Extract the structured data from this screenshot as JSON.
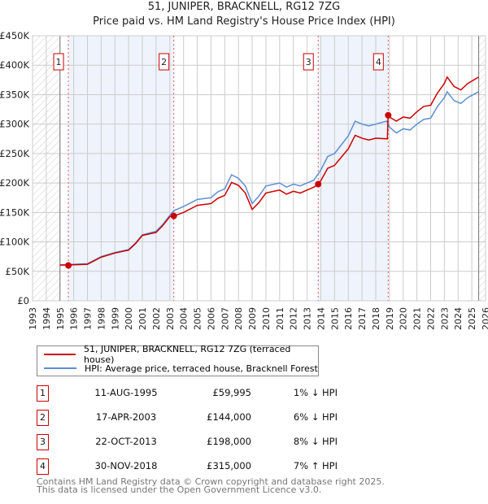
{
  "chart_data": {
    "type": "line",
    "title": "51, JUNIPER, BRACKNELL, RG12 7ZG",
    "subtitle": "Price paid vs. HM Land Registry's House Price Index (HPI)",
    "xlim": [
      1993,
      2026
    ],
    "ylim": [
      0,
      450000
    ],
    "x_ticks": [
      "1993",
      "1994",
      "1995",
      "1996",
      "1997",
      "1998",
      "1999",
      "2000",
      "2001",
      "2002",
      "2003",
      "2004",
      "2005",
      "2006",
      "2007",
      "2008",
      "2009",
      "2010",
      "2011",
      "2012",
      "2013",
      "2014",
      "2015",
      "2016",
      "2017",
      "2018",
      "2019",
      "2020",
      "2021",
      "2022",
      "2023",
      "2024",
      "2025",
      "2026"
    ],
    "y_ticks": [
      {
        "v": 0,
        "label": "£0"
      },
      {
        "v": 50000,
        "label": "£50K"
      },
      {
        "v": 100000,
        "label": "£100K"
      },
      {
        "v": 150000,
        "label": "£150K"
      },
      {
        "v": 200000,
        "label": "£200K"
      },
      {
        "v": 250000,
        "label": "£250K"
      },
      {
        "v": 300000,
        "label": "£300K"
      },
      {
        "v": 350000,
        "label": "£350K"
      },
      {
        "v": 400000,
        "label": "£400K"
      },
      {
        "v": 450000,
        "label": "£450K"
      }
    ],
    "grid": true,
    "data_range": [
      1995,
      2025.5
    ],
    "shaded_periods": [
      [
        1995.6,
        2003.3
      ],
      [
        2013.8,
        2018.9
      ]
    ],
    "colors": {
      "property": "#cc0000",
      "hpi": "#5b8fd4",
      "shade": "#eef3fc",
      "marker": "#cc0000"
    },
    "series": [
      {
        "name": "51, JUNIPER, BRACKNELL, RG12 7ZG (terraced house)",
        "x": [
          1995,
          1996,
          1997,
          1998,
          1999,
          2000,
          2000.5,
          2001,
          2002,
          2002.5,
          2003,
          2003.3,
          2004,
          2005,
          2006,
          2006.5,
          2007,
          2007.5,
          2008,
          2008.5,
          2009,
          2009.5,
          2010,
          2011,
          2011.5,
          2012,
          2012.5,
          2013,
          2013.5,
          2013.8,
          2014,
          2014.5,
          2015,
          2015.5,
          2016,
          2016.5,
          2017,
          2017.5,
          2018,
          2018.85,
          2018.9,
          2019,
          2019.5,
          2020,
          2020.5,
          2021,
          2021.5,
          2022,
          2022.5,
          2023,
          2023.2,
          2023.7,
          2024.2,
          2024.7,
          2025.5
        ],
        "y": [
          60500,
          61000,
          62000,
          74000,
          81000,
          86000,
          97000,
          111000,
          116000,
          128000,
          143000,
          144000,
          150000,
          162000,
          165000,
          174000,
          179000,
          201000,
          196000,
          183000,
          155000,
          167000,
          183000,
          188000,
          181000,
          186000,
          183000,
          188000,
          193000,
          198000,
          204000,
          225000,
          230000,
          244000,
          258000,
          281000,
          276000,
          273000,
          276000,
          275000,
          315000,
          312000,
          305000,
          312000,
          310000,
          321000,
          330000,
          332000,
          353000,
          369000,
          380000,
          364000,
          358000,
          369000,
          380000
        ]
      },
      {
        "name": "HPI: Average price, terraced house, Bracknell Forest",
        "x": [
          1995,
          1996,
          1997,
          1998,
          1999,
          2000,
          2000.5,
          2001,
          2002,
          2002.5,
          2003,
          2003.3,
          2004,
          2005,
          2006,
          2006.5,
          2007,
          2007.5,
          2008,
          2008.5,
          2009,
          2009.5,
          2010,
          2011,
          2011.5,
          2012,
          2012.5,
          2013,
          2013.5,
          2014,
          2014.5,
          2015,
          2015.5,
          2016,
          2016.5,
          2017,
          2017.5,
          2018,
          2018.8,
          2019,
          2019.5,
          2020,
          2020.5,
          2021,
          2021.5,
          2022,
          2022.5,
          2023,
          2023.2,
          2023.7,
          2024.2,
          2024.7,
          2025.5
        ],
        "y": [
          61000,
          62000,
          63000,
          75000,
          82000,
          87000,
          98000,
          112000,
          118000,
          130000,
          145000,
          153000,
          160000,
          172000,
          175000,
          185000,
          190000,
          214000,
          208000,
          195000,
          165000,
          178000,
          195000,
          200000,
          193000,
          198000,
          195000,
          200000,
          205000,
          222000,
          245000,
          250000,
          265000,
          280000,
          305000,
          300000,
          297000,
          300000,
          305000,
          295000,
          285000,
          292000,
          290000,
          300000,
          308000,
          310000,
          330000,
          345000,
          355000,
          340000,
          335000,
          345000,
          355000
        ]
      }
    ],
    "sales": [
      {
        "n": "1",
        "x": 1995.61,
        "price": 59995,
        "date": "11-AUG-1995",
        "price_label": "£59,995",
        "hpi": "1% ↓ HPI"
      },
      {
        "n": "2",
        "x": 2003.29,
        "price": 144000,
        "date": "17-APR-2003",
        "price_label": "£144,000",
        "hpi": "6% ↓ HPI"
      },
      {
        "n": "3",
        "x": 2013.81,
        "price": 198000,
        "date": "22-OCT-2013",
        "price_label": "£198,000",
        "hpi": "8% ↓ HPI"
      },
      {
        "n": "4",
        "x": 2018.91,
        "price": 315000,
        "date": "30-NOV-2018",
        "price_label": "£315,000",
        "hpi": "7% ↑ HPI"
      }
    ]
  },
  "footer": {
    "line1": "Contains HM Land Registry data © Crown copyright and database right 2025.",
    "line2": "This data is licensed under the Open Government Licence v3.0."
  }
}
